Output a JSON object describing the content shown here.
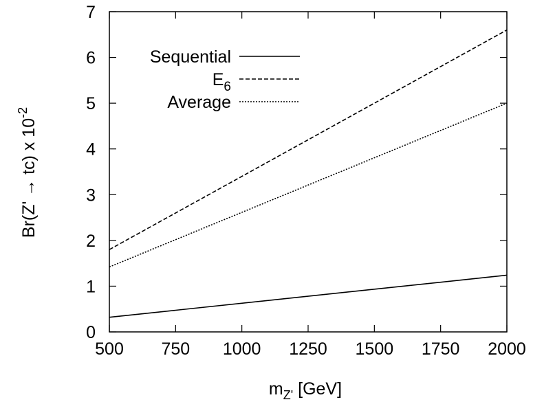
{
  "chart_data": {
    "type": "line",
    "title": "",
    "xlabel": {
      "main": "m",
      "sub": "Z'",
      "rest": " [GeV]"
    },
    "ylabel": {
      "main": "Br(Z' → tc) x 10",
      "sup": "-2"
    },
    "xlim": [
      500,
      2000
    ],
    "ylim": [
      0,
      7
    ],
    "xticks": [
      500,
      750,
      1000,
      1250,
      1500,
      1750,
      2000
    ],
    "yticks": [
      0,
      1,
      2,
      3,
      4,
      5,
      6,
      7
    ],
    "grid": false,
    "legend_position": "top-left",
    "series": [
      {
        "name": "Sequential",
        "name_sub": "",
        "style": "solid",
        "x": [
          500,
          2000
        ],
        "y": [
          0.32,
          1.24
        ]
      },
      {
        "name": "E",
        "name_sub": "6",
        "style": "dashed",
        "x": [
          500,
          2000
        ],
        "y": [
          1.8,
          6.6
        ]
      },
      {
        "name": "Average",
        "name_sub": "",
        "style": "dotted",
        "x": [
          500,
          2000
        ],
        "y": [
          1.42,
          5.0
        ]
      }
    ]
  }
}
